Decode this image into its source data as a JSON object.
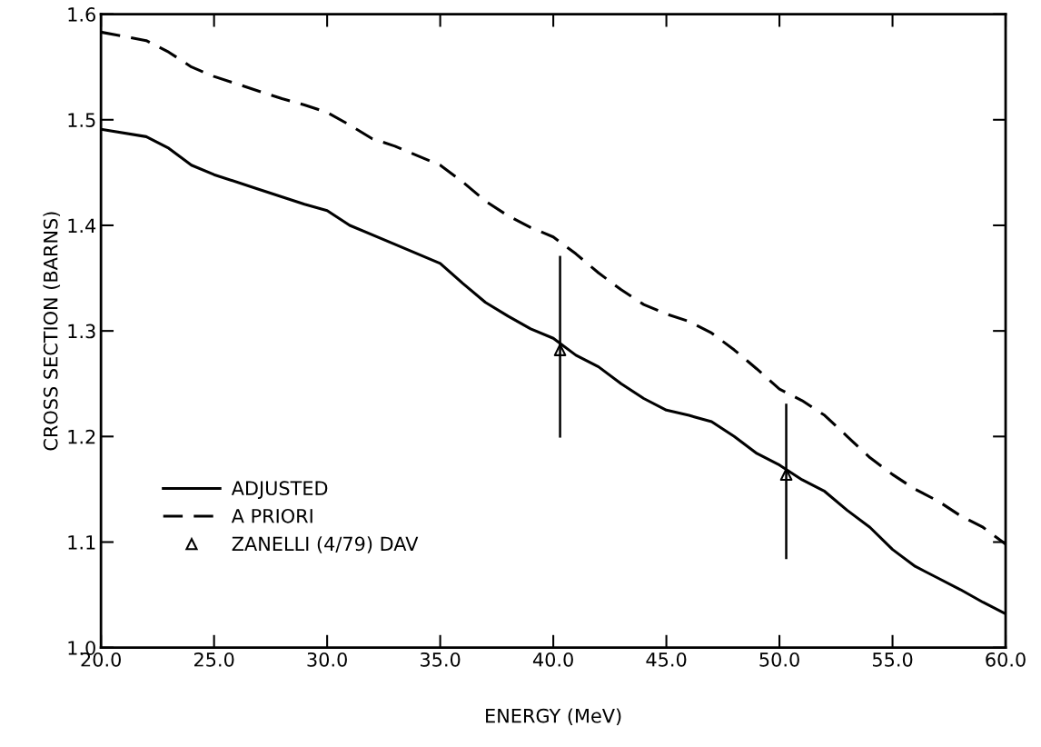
{
  "chart_data": {
    "type": "line",
    "xlabel": "ENERGY (MeV)",
    "ylabel": "CROSS SECTION (BARNS)",
    "xlim": [
      20,
      60
    ],
    "ylim": [
      1.0,
      1.6
    ],
    "xticks": [
      {
        "value": 20,
        "label": "20.0"
      },
      {
        "value": 25,
        "label": "25.0"
      },
      {
        "value": 30,
        "label": "30.0"
      },
      {
        "value": 35,
        "label": "35.0"
      },
      {
        "value": 40,
        "label": "40.0"
      },
      {
        "value": 45,
        "label": "45.0"
      },
      {
        "value": 50,
        "label": "50.0"
      },
      {
        "value": 55,
        "label": "55.0"
      },
      {
        "value": 60,
        "label": "60.0"
      }
    ],
    "yticks": [
      {
        "value": 1.0,
        "label": "1.0"
      },
      1.1,
      1.2,
      1.3,
      1.4,
      1.5,
      1.6
    ],
    "grid": false,
    "legend": "lower left",
    "series": [
      {
        "name": "ADJUSTED",
        "line_style": "solid",
        "marker": "none",
        "color": "#000000",
        "x": [
          20,
          22,
          23,
          24,
          25,
          27,
          29,
          30,
          31,
          33,
          34,
          35,
          36,
          37,
          38,
          39,
          40,
          41,
          42,
          43,
          44,
          45,
          46,
          47,
          48,
          49,
          50,
          51,
          52,
          53,
          54,
          55,
          56,
          57,
          58,
          59,
          60
        ],
        "values": [
          1.491,
          1.484,
          1.473,
          1.457,
          1.448,
          1.434,
          1.42,
          1.414,
          1.4,
          1.382,
          1.373,
          1.364,
          1.345,
          1.327,
          1.314,
          1.302,
          1.293,
          1.277,
          1.266,
          1.25,
          1.236,
          1.225,
          1.22,
          1.214,
          1.2,
          1.184,
          1.173,
          1.159,
          1.148,
          1.13,
          1.114,
          1.093,
          1.077,
          1.066,
          1.055,
          1.043,
          1.032
        ]
      },
      {
        "name": "A PRIORI",
        "line_style": "dashed",
        "marker": "none",
        "color": "#000000",
        "x": [
          20,
          22,
          23,
          24,
          25,
          26,
          27,
          28,
          29,
          30,
          31,
          32,
          33,
          34,
          35,
          36,
          37,
          38,
          39,
          40,
          41,
          42,
          43,
          44,
          45,
          46,
          47,
          48,
          49,
          50,
          51,
          52,
          53,
          54,
          55,
          56,
          57,
          58,
          59,
          60
        ],
        "values": [
          1.583,
          1.575,
          1.564,
          1.55,
          1.541,
          1.534,
          1.527,
          1.52,
          1.514,
          1.507,
          1.495,
          1.482,
          1.475,
          1.466,
          1.457,
          1.441,
          1.423,
          1.409,
          1.398,
          1.389,
          1.373,
          1.355,
          1.339,
          1.325,
          1.316,
          1.309,
          1.298,
          1.282,
          1.264,
          1.245,
          1.234,
          1.22,
          1.2,
          1.18,
          1.164,
          1.15,
          1.139,
          1.125,
          1.114,
          1.098
        ]
      },
      {
        "name": "ZANELLI (4/79) DAV",
        "type": "scatter",
        "marker": "triangle",
        "color": "#000000",
        "x": [
          40.3,
          50.3
        ],
        "values": [
          1.282,
          1.164
        ],
        "errors": [
          [
            1.2,
            1.37
          ],
          [
            1.085,
            1.23
          ]
        ]
      }
    ]
  }
}
